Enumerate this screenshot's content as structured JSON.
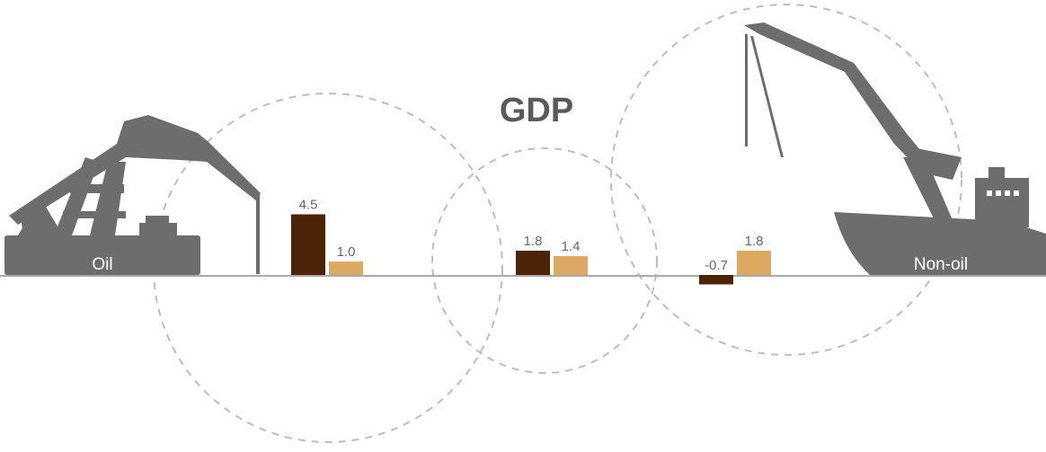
{
  "chart_data": {
    "type": "bar",
    "title": "GDP",
    "categories": [
      "Oil",
      "GDP",
      "Non-oil"
    ],
    "series": [
      {
        "values": [
          4.5,
          1.8,
          -0.7
        ],
        "color": "#4e2408"
      },
      {
        "values": [
          1.0,
          1.4,
          1.8
        ],
        "color": "#dca962"
      }
    ],
    "icons": [
      "oil-pumpjack-icon",
      "cargo-ship-crane-icon"
    ]
  },
  "colors": {
    "baseline": "#aaaaaa",
    "icon": "#6d6d6d",
    "circle": "#bdbdbd"
  }
}
